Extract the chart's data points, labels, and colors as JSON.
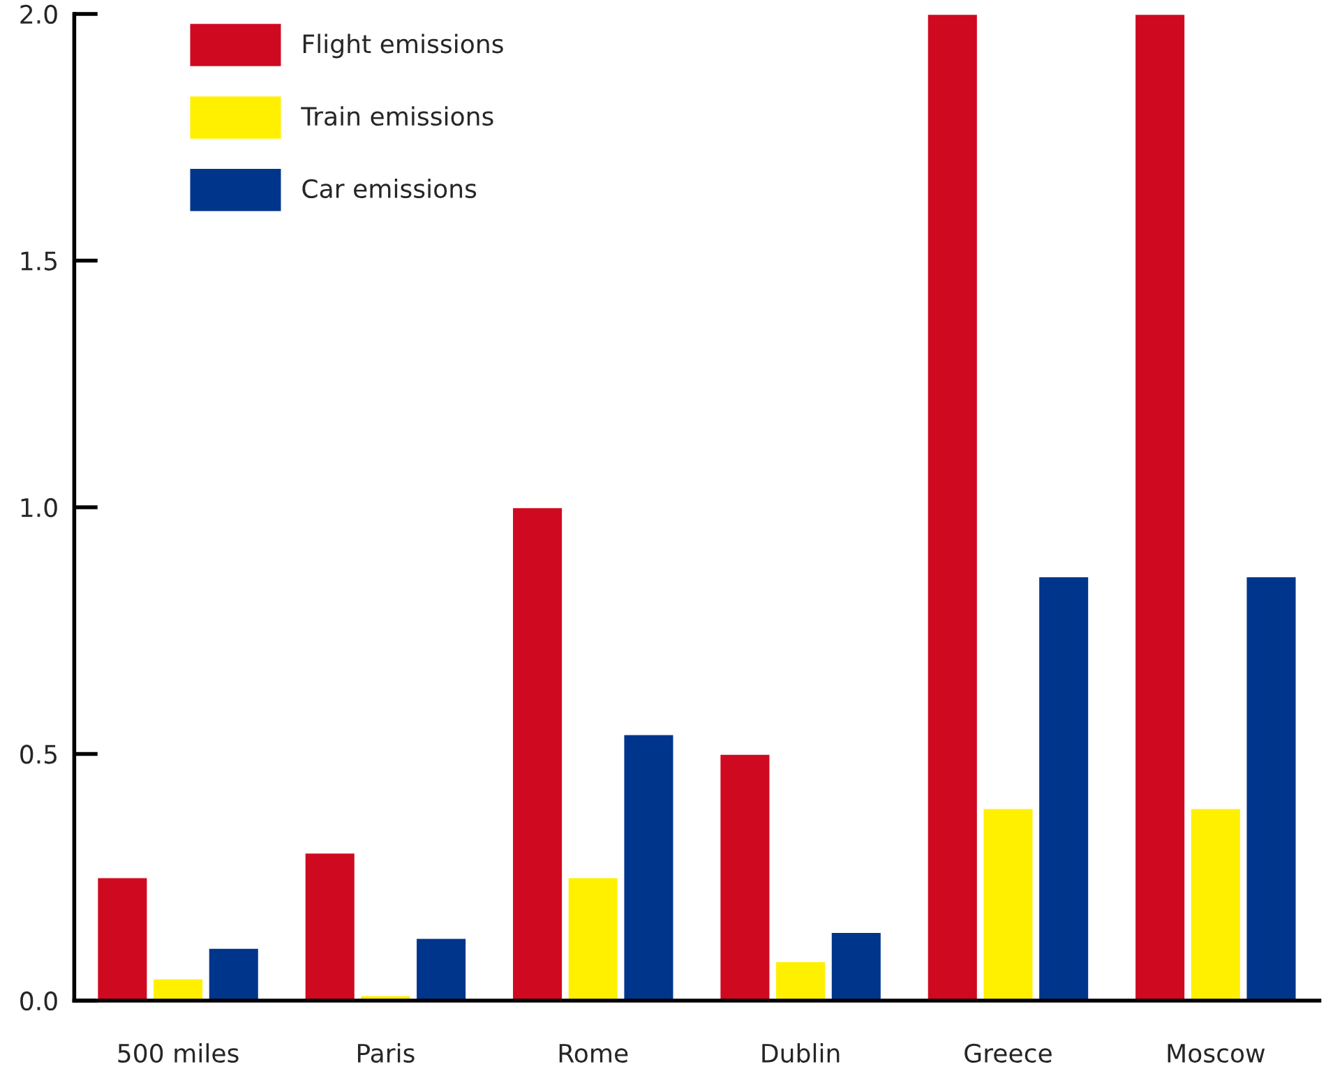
{
  "chart_data": {
    "type": "bar",
    "categories": [
      "500 miles",
      "Paris",
      "Rome",
      "Dublin",
      "Greece",
      "Moscow"
    ],
    "series": [
      {
        "name": "Flight emissions",
        "color": "#cf0a20",
        "values": [
          0.25,
          0.3,
          1.0,
          0.5,
          2.0,
          2.0
        ]
      },
      {
        "name": "Train emissions",
        "color": "#fff000",
        "values": [
          0.045,
          0.011,
          0.25,
          0.08,
          0.39,
          0.39
        ]
      },
      {
        "name": "Car emissions",
        "color": "#00358c",
        "values": [
          0.107,
          0.127,
          0.54,
          0.139,
          0.86,
          0.86
        ]
      }
    ],
    "ylim": [
      0,
      2.0
    ],
    "yticks": [
      {
        "value": 0,
        "label": "0.0"
      },
      {
        "value": 0.5,
        "label": "0.5"
      },
      {
        "value": 1.0,
        "label": "1.0"
      },
      {
        "value": 1.5,
        "label": "1.5"
      },
      {
        "value": 2.0,
        "label": "2.0"
      }
    ],
    "legend": "top left",
    "grid": false
  }
}
